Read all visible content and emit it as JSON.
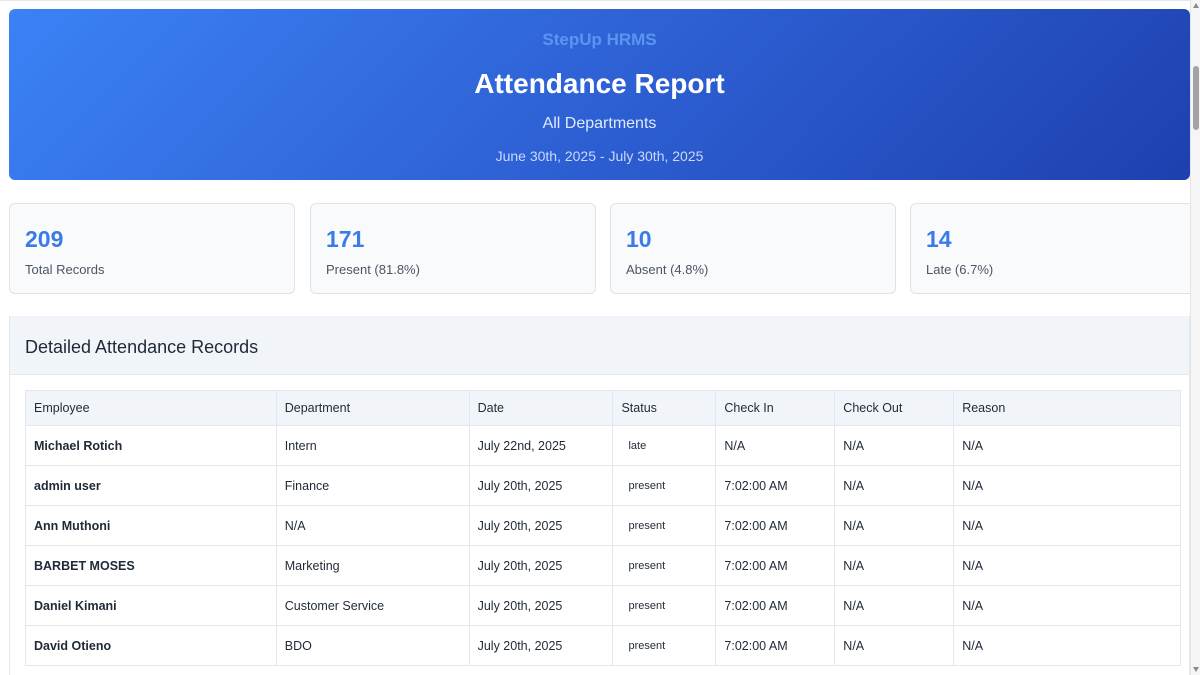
{
  "header": {
    "brand": "StepUp HRMS",
    "title": "Attendance Report",
    "subtitle": "All Departments",
    "date_range": "June 30th, 2025 - July 30th, 2025"
  },
  "stats": [
    {
      "value": "209",
      "label": "Total Records"
    },
    {
      "value": "171",
      "label": "Present (81.8%)"
    },
    {
      "value": "10",
      "label": "Absent (4.8%)"
    },
    {
      "value": "14",
      "label": "Late (6.7%)"
    }
  ],
  "section": {
    "title": "Detailed Attendance Records"
  },
  "table": {
    "columns": [
      "Employee",
      "Department",
      "Date",
      "Status",
      "Check In",
      "Check Out",
      "Reason"
    ],
    "rows": [
      [
        "Michael Rotich",
        "Intern",
        "July 22nd, 2025",
        "late",
        "N/A",
        "N/A",
        "N/A"
      ],
      [
        "admin user",
        "Finance",
        "July 20th, 2025",
        "present",
        "7:02:00 AM",
        "N/A",
        "N/A"
      ],
      [
        "Ann Muthoni",
        "N/A",
        "July 20th, 2025",
        "present",
        "7:02:00 AM",
        "N/A",
        "N/A"
      ],
      [
        "BARBET MOSES",
        "Marketing",
        "July 20th, 2025",
        "present",
        "7:02:00 AM",
        "N/A",
        "N/A"
      ],
      [
        "Daniel Kimani",
        "Customer Service",
        "July 20th, 2025",
        "present",
        "7:02:00 AM",
        "N/A",
        "N/A"
      ],
      [
        "David Otieno",
        "BDO",
        "July 20th, 2025",
        "present",
        "7:02:00 AM",
        "N/A",
        "N/A"
      ]
    ]
  },
  "colors": {
    "accent": "#3b7be8",
    "hero_start": "#3b82f6",
    "hero_end": "#1e40af"
  }
}
